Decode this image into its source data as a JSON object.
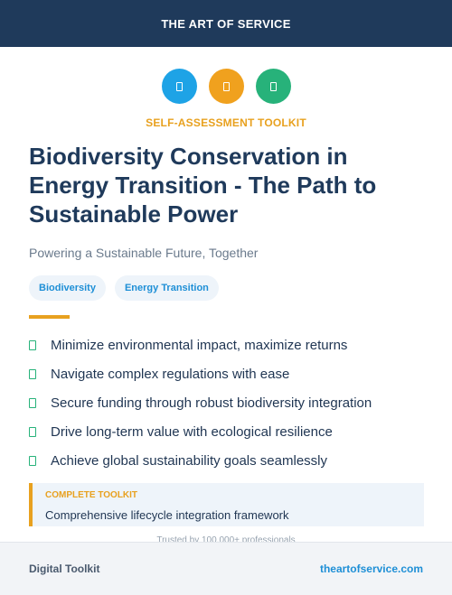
{
  "header": {
    "brand": "THE ART OF SERVICE"
  },
  "icons": [
    {
      "name": "document-icon",
      "color": "#1ea3e6"
    },
    {
      "name": "document-icon",
      "color": "#f0a11e"
    },
    {
      "name": "document-icon",
      "color": "#27b27a"
    }
  ],
  "kicker": "SELF-ASSESSMENT TOOLKIT",
  "title": "Biodiversity Conservation in Energy Transition - The Path to Sustainable Power",
  "subtitle": "Powering a Sustainable Future, Together",
  "tags": [
    "Biodiversity",
    "Energy Transition"
  ],
  "bullets": [
    "Minimize environmental impact, maximize returns",
    "Navigate complex regulations with ease",
    "Secure funding through robust biodiversity integration",
    "Drive long-term value with ecological resilience",
    "Achieve global sustainability goals seamlessly"
  ],
  "callout": {
    "label": "COMPLETE TOOLKIT",
    "text": "Comprehensive lifecycle integration framework"
  },
  "trusted": "Trusted by 100,000+ professionals",
  "footer": {
    "left": "Digital Toolkit",
    "right": "theartofservice.com"
  },
  "colors": {
    "header_bg": "#1f3a5b",
    "accent": "#e8a11f",
    "link": "#1e8fd6",
    "check": "#27b27a"
  }
}
